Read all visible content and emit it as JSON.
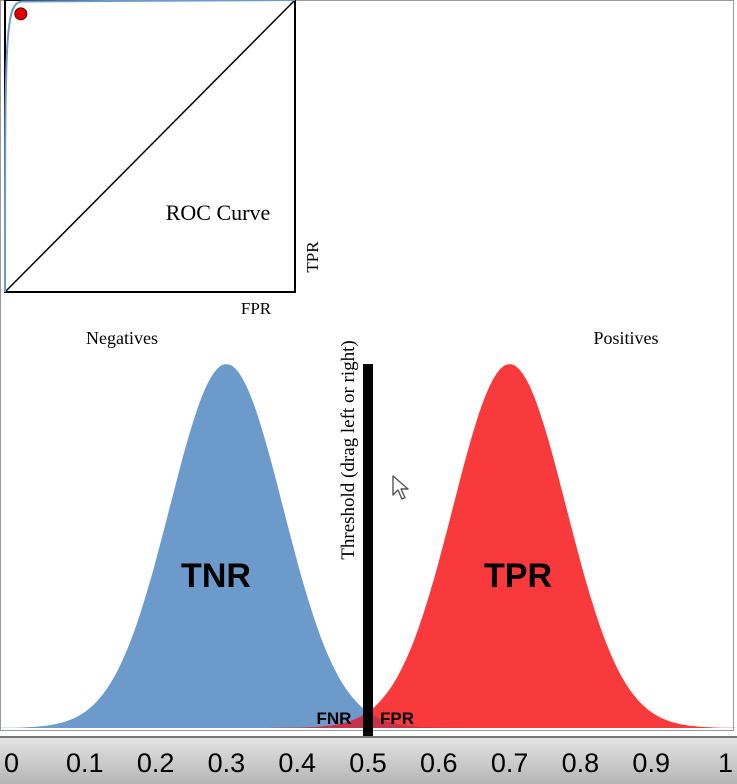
{
  "colors": {
    "negatives": "#6b9acb",
    "positives": "#f83a3c",
    "overlap": "#c63348",
    "threshold": "#000000",
    "axis_bar_top": "#e6e6e6",
    "axis_bar_bottom": "#b5b5b5"
  },
  "roc": {
    "title": "ROC Curve",
    "xlabel": "FPR",
    "ylabel": "TPR",
    "point": {
      "fpr": 0.02,
      "tpr": 0.98
    }
  },
  "chart_data": {
    "type": "area",
    "series": [
      {
        "name": "Negatives",
        "mean": 0.3,
        "sd": 0.08,
        "region_label": "TNR"
      },
      {
        "name": "Positives",
        "mean": 0.7,
        "sd": 0.08,
        "region_label": "TPR"
      }
    ],
    "overlap_labels": {
      "left": "FNR",
      "right": "FPR"
    },
    "threshold": {
      "value": 0.5,
      "label": "Threshold (drag left or right)"
    },
    "xlim": [
      0,
      1
    ],
    "xticks": [
      "0",
      "0.1",
      "0.2",
      "0.3",
      "0.4",
      "0.5",
      "0.6",
      "0.7",
      "0.8",
      "0.9",
      "1"
    ]
  },
  "icons": {
    "cursor": "mouse-pointer-icon"
  }
}
